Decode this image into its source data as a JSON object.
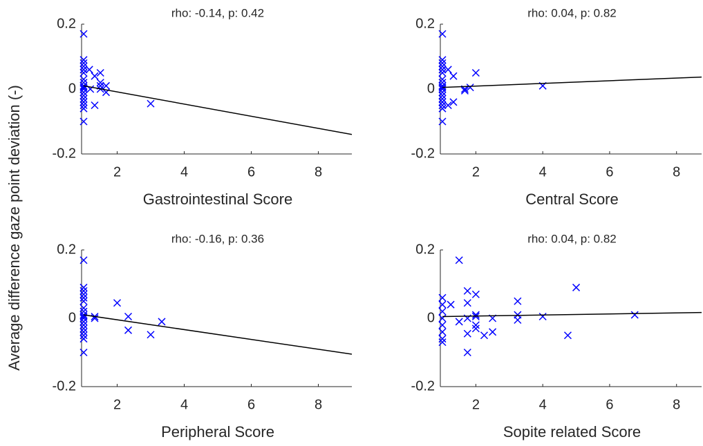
{
  "ylabel": "Average difference gaze point deviation (-)",
  "chart_data": [
    {
      "type": "scatter",
      "title": "rho: -0.14, p: 0.42",
      "xlabel": "Gastrointestinal Score",
      "color": "#0000ff",
      "x": [
        1,
        1,
        1,
        1,
        1,
        1,
        1,
        1,
        1,
        1,
        1,
        1,
        1,
        1,
        1,
        1,
        1,
        1,
        1.17,
        1.2,
        1.33,
        1.33,
        1.5,
        1.5,
        1.5,
        1.5,
        1.67,
        1.67,
        3
      ],
      "y": [
        0.17,
        0.09,
        0.08,
        0.07,
        0.06,
        0.05,
        0.03,
        0.02,
        0.01,
        0.005,
        0,
        -0.01,
        -0.02,
        -0.03,
        -0.04,
        -0.05,
        -0.06,
        -0.1,
        0.06,
        0,
        0.04,
        -0.05,
        0.05,
        0.02,
        0.01,
        0,
        0.01,
        -0.01,
        -0.045
      ],
      "fit_line": {
        "x": [
          1,
          9
        ],
        "y": [
          0.01,
          -0.14
        ]
      },
      "xlim": [
        1,
        9
      ],
      "ylim": [
        -0.2,
        0.2
      ],
      "xticks": [
        2,
        4,
        6,
        8
      ],
      "yticks": [
        -0.2,
        0,
        0.2
      ]
    },
    {
      "type": "scatter",
      "title": "rho: 0.04, p: 0.82",
      "xlabel": "Central Score",
      "color": "#0000ff",
      "x": [
        1,
        1,
        1,
        1,
        1,
        1,
        1,
        1,
        1,
        1,
        1,
        1,
        1,
        1,
        1,
        1,
        1,
        1,
        1.17,
        1.17,
        1.33,
        1.33,
        1.67,
        1.67,
        1.83,
        2,
        4
      ],
      "y": [
        0.17,
        0.09,
        0.08,
        0.07,
        0.06,
        0.05,
        0.03,
        0.02,
        0.01,
        0.005,
        0,
        -0.01,
        -0.02,
        -0.03,
        -0.04,
        -0.05,
        -0.06,
        -0.1,
        0.06,
        -0.05,
        0.04,
        -0.04,
        0,
        -0.005,
        0.005,
        0.05,
        0.01
      ],
      "fit_line": {
        "x": [
          1,
          8.75
        ],
        "y": [
          0.005,
          0.037
        ]
      },
      "xlim": [
        1,
        8.75
      ],
      "ylim": [
        -0.2,
        0.2
      ],
      "xticks": [
        2,
        4,
        6,
        8
      ],
      "yticks": [
        -0.2,
        0,
        0.2
      ]
    },
    {
      "type": "scatter",
      "title": "rho: -0.16, p: 0.36",
      "xlabel": "Peripheral Score",
      "color": "#0000ff",
      "x": [
        1,
        1,
        1,
        1,
        1,
        1,
        1,
        1,
        1,
        1,
        1,
        1,
        1,
        1,
        1,
        1,
        1,
        1,
        1.33,
        1.33,
        2,
        2.33,
        2.33,
        3,
        3.33
      ],
      "y": [
        0.17,
        0.09,
        0.08,
        0.07,
        0.06,
        0.05,
        0.03,
        0.02,
        0.01,
        0.005,
        0,
        -0.01,
        -0.02,
        -0.03,
        -0.04,
        -0.05,
        -0.06,
        -0.1,
        0.005,
        0,
        0.045,
        0.005,
        -0.035,
        -0.048,
        -0.01
      ],
      "fit_line": {
        "x": [
          1,
          9
        ],
        "y": [
          0.01,
          -0.105
        ]
      },
      "xlim": [
        1,
        9
      ],
      "ylim": [
        -0.2,
        0.2
      ],
      "xticks": [
        2,
        4,
        6,
        8
      ],
      "yticks": [
        -0.2,
        0,
        0.2
      ]
    },
    {
      "type": "scatter",
      "title": "rho: 0.04, p: 0.82",
      "xlabel": "Sopite related Score",
      "color": "#0000ff",
      "x": [
        1,
        1,
        1,
        1,
        1,
        1,
        1,
        1,
        1.25,
        1.5,
        1.5,
        1.75,
        1.75,
        1.75,
        1.75,
        1.75,
        2,
        2,
        2,
        2,
        2,
        2.25,
        2.5,
        2.5,
        3.25,
        3.25,
        3.25,
        4,
        4.75,
        5,
        6.75
      ],
      "y": [
        0.06,
        0.04,
        0.02,
        0,
        -0.02,
        -0.04,
        -0.06,
        -0.07,
        0.04,
        0.17,
        -0.01,
        0.08,
        0.045,
        0,
        -0.045,
        -0.1,
        0.07,
        0.01,
        0.005,
        -0.02,
        -0.03,
        -0.05,
        0,
        -0.04,
        0.05,
        0.01,
        -0.005,
        0.005,
        -0.05,
        0.09,
        0.01
      ],
      "fit_line": {
        "x": [
          1,
          8.75
        ],
        "y": [
          0.005,
          0.017
        ]
      },
      "xlim": [
        1,
        8.75
      ],
      "ylim": [
        -0.2,
        0.2
      ],
      "xticks": [
        2,
        4,
        6,
        8
      ],
      "yticks": [
        -0.2,
        0,
        0.2
      ]
    }
  ]
}
